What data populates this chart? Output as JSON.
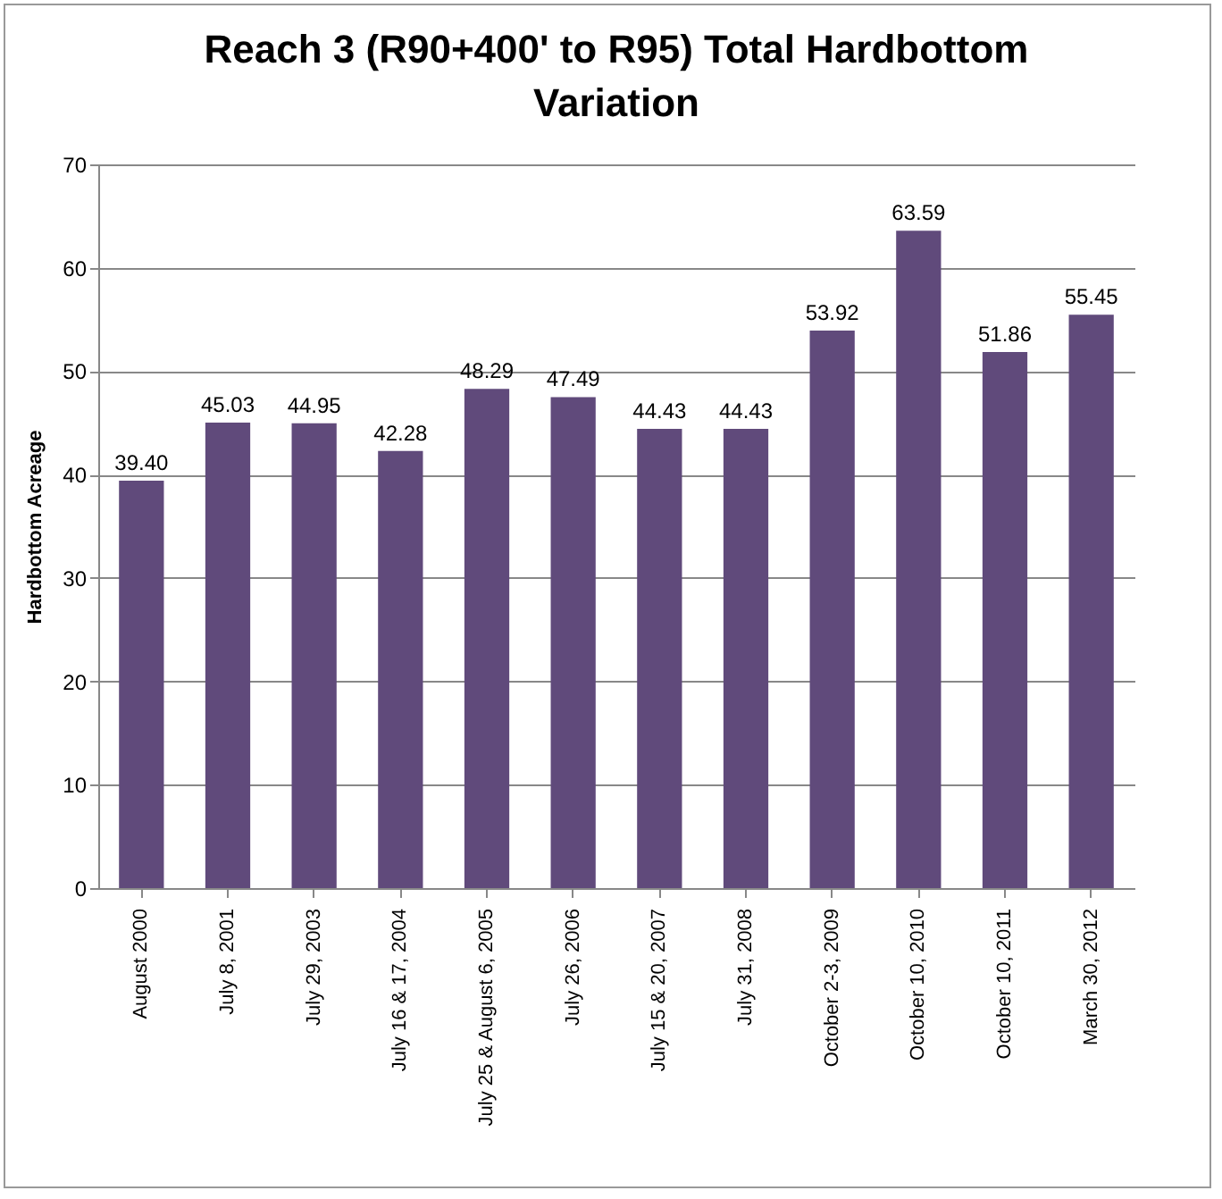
{
  "chart_data": {
    "type": "bar",
    "title": "Reach 3 (R90+400' to R95) Total Hardbottom Variation",
    "ylabel": "Hardbottom Acreage",
    "categories": [
      "August 2000",
      "July 8, 2001",
      "July 29, 2003",
      "July 16 & 17, 2004",
      "July 25 & August 6, 2005",
      "July 26, 2006",
      "July 15 & 20, 2007",
      "July 31, 2008",
      "October 2-3, 2009",
      "October 10, 2010",
      "October 10, 2011",
      "March 30, 2012"
    ],
    "values": [
      39.4,
      45.03,
      44.95,
      42.28,
      48.29,
      47.49,
      44.43,
      44.43,
      53.92,
      63.59,
      51.86,
      55.45
    ],
    "value_labels": [
      "39.40",
      "45.03",
      "44.95",
      "42.28",
      "48.29",
      "47.49",
      "44.43",
      "44.43",
      "53.92",
      "63.59",
      "51.86",
      "55.45"
    ],
    "color": "#604a7b",
    "ylim": [
      0,
      70
    ],
    "yticks": [
      0,
      10,
      20,
      30,
      40,
      50,
      60,
      70
    ],
    "grid": "y"
  }
}
